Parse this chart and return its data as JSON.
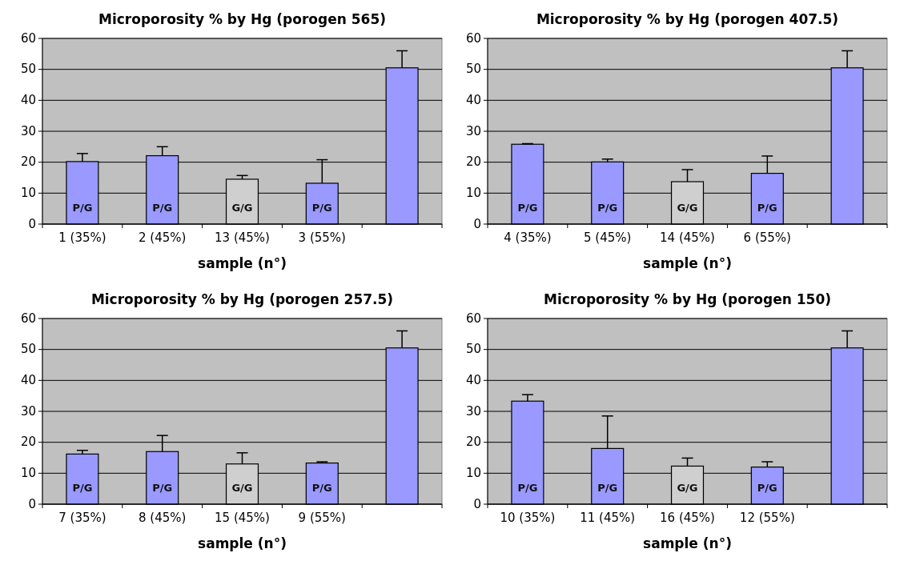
{
  "chart_data": [
    {
      "type": "bar",
      "title": "Microporosity % by Hg (porogen 565)",
      "xlabel": "sample (n°)",
      "categories": [
        "1 (35%)",
        "2 (45%)",
        "13 (45%)",
        "3 (55%)",
        null
      ],
      "values": [
        20.2,
        22.1,
        14.5,
        13.2,
        50.5
      ],
      "colors": [
        "#9999ff",
        "#9999ff",
        "#cfcfcf",
        "#9999ff",
        "#9999ff"
      ],
      "errors": [
        [
          20.2,
          22.8
        ],
        [
          22.1,
          25
        ],
        [
          14.5,
          15.7
        ],
        [
          13.2,
          20.8
        ],
        [
          50.5,
          56
        ]
      ],
      "ylim": [
        0,
        60
      ],
      "yticks": [
        0,
        10,
        20,
        30,
        40,
        50,
        60
      ],
      "grid": "y",
      "annotations": [
        "P/G",
        "P/G",
        "G/G",
        "P/G"
      ]
    },
    {
      "type": "bar",
      "title": "Microporosity % by Hg (porogen 407.5)",
      "xlabel": "sample (n°)",
      "categories": [
        "4 (35%)",
        "5 (45%)",
        "14 (45%)",
        "6 (55%)",
        null
      ],
      "values": [
        25.8,
        20.1,
        13.7,
        16.4,
        50.5
      ],
      "colors": [
        "#9999ff",
        "#9999ff",
        "#cfcfcf",
        "#9999ff",
        "#9999ff"
      ],
      "errors": [
        [
          25.8,
          26
        ],
        [
          20.1,
          21
        ],
        [
          13.7,
          17.6
        ],
        [
          16.4,
          22
        ],
        [
          50.5,
          56
        ]
      ],
      "ylim": [
        0,
        60
      ],
      "yticks": [
        0,
        10,
        20,
        30,
        40,
        50,
        60
      ],
      "grid": "y",
      "annotations": [
        "P/G",
        "P/G",
        "G/G",
        "P/G"
      ]
    },
    {
      "type": "bar",
      "title": "Microporosity % by Hg (porogen 257.5)",
      "xlabel": "sample (n°)",
      "categories": [
        "7 (35%)",
        "8 (45%)",
        "15 (45%)",
        "9 (55%)",
        null
      ],
      "values": [
        16.2,
        17,
        13,
        13.3,
        50.5
      ],
      "colors": [
        "#9999ff",
        "#9999ff",
        "#cfcfcf",
        "#9999ff",
        "#9999ff"
      ],
      "errors": [
        [
          16.2,
          17.4
        ],
        [
          17,
          22.2
        ],
        [
          13,
          16.6
        ],
        [
          13.3,
          13.7
        ],
        [
          50.5,
          56
        ]
      ],
      "ylim": [
        0,
        60
      ],
      "yticks": [
        0,
        10,
        20,
        30,
        40,
        50,
        60
      ],
      "grid": "y",
      "annotations": [
        "P/G",
        "P/G",
        "G/G",
        "P/G"
      ]
    },
    {
      "type": "bar",
      "title": "Microporosity % by Hg (porogen 150)",
      "xlabel": "sample (n°)",
      "categories": [
        "10 (35%)",
        "11 (45%)",
        "16 (45%)",
        "12 (55%)",
        null
      ],
      "values": [
        33.3,
        18,
        12.3,
        12,
        50.5
      ],
      "colors": [
        "#9999ff",
        "#9999ff",
        "#cfcfcf",
        "#9999ff",
        "#9999ff"
      ],
      "errors": [
        [
          33.3,
          35.4
        ],
        [
          18,
          28.5
        ],
        [
          12.3,
          14.9
        ],
        [
          12,
          13.7
        ],
        [
          50.5,
          56
        ]
      ],
      "ylim": [
        0,
        60
      ],
      "yticks": [
        0,
        10,
        20,
        30,
        40,
        50,
        60
      ],
      "grid": "y",
      "annotations": [
        "P/G",
        "P/G",
        "G/G",
        "P/G"
      ]
    }
  ]
}
